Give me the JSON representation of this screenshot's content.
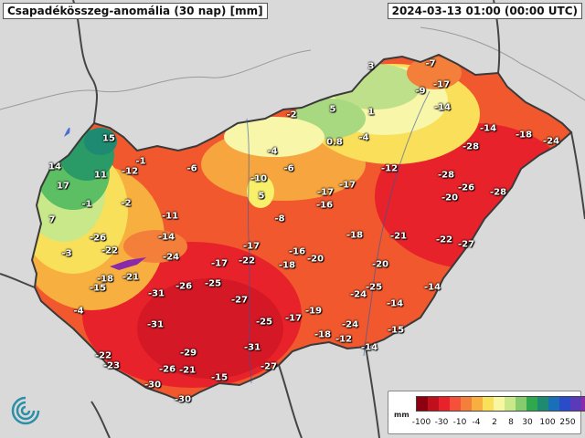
{
  "header": {
    "title": "Csapadékösszeg-anomália (30 nap) [mm]",
    "datetime": "2024-03-13 01:00 (00:00 UTC)"
  },
  "legend": {
    "unit": "mm",
    "colors": [
      "#8c0010",
      "#c0101e",
      "#e8222a",
      "#f5503a",
      "#f47f3a",
      "#f7b040",
      "#f8e05a",
      "#f8f6a0",
      "#c8e88a",
      "#86cc6e",
      "#2fa84e",
      "#1f8a72",
      "#1a70b8",
      "#2a4cc8",
      "#5a3ab8",
      "#8a2aa8"
    ],
    "ticks": [
      "-100",
      "-30",
      "-10",
      "-4",
      "2",
      "8",
      "30",
      "100",
      "250"
    ]
  },
  "stations": [
    {
      "value": "3",
      "col": "#fff"
    },
    {
      "value": "-7"
    },
    {
      "value": "-9"
    },
    {
      "value": "-17"
    },
    {
      "value": "-14"
    },
    {
      "value": "5"
    },
    {
      "value": "1"
    },
    {
      "value": "-2"
    },
    {
      "value": "0.8"
    },
    {
      "value": "-4"
    },
    {
      "value": "-14"
    },
    {
      "value": "-18"
    },
    {
      "value": "-24"
    },
    {
      "value": "-28"
    },
    {
      "value": "-28"
    },
    {
      "value": "-26"
    },
    {
      "value": "-20"
    },
    {
      "value": "-28"
    },
    {
      "value": "-12"
    },
    {
      "value": "-17"
    },
    {
      "value": "-17"
    },
    {
      "value": "-16"
    },
    {
      "value": "-4"
    },
    {
      "value": "-6"
    },
    {
      "value": "-10"
    },
    {
      "value": "5"
    },
    {
      "value": "-8"
    },
    {
      "value": "-6"
    },
    {
      "value": "15"
    },
    {
      "value": "-1"
    },
    {
      "value": "-12"
    },
    {
      "value": "14"
    },
    {
      "value": "11"
    },
    {
      "value": "17"
    },
    {
      "value": "-1"
    },
    {
      "value": "-2"
    },
    {
      "value": "7"
    },
    {
      "value": "-11"
    },
    {
      "value": "-26"
    },
    {
      "value": "-14"
    },
    {
      "value": "-22"
    },
    {
      "value": "-3"
    },
    {
      "value": "-24"
    },
    {
      "value": "-18"
    },
    {
      "value": "-21"
    },
    {
      "value": "-15"
    },
    {
      "value": "-17"
    },
    {
      "value": "-22"
    },
    {
      "value": "-17"
    },
    {
      "value": "-16"
    },
    {
      "value": "-18"
    },
    {
      "value": "-20"
    },
    {
      "value": "-18"
    },
    {
      "value": "-21"
    },
    {
      "value": "-22"
    },
    {
      "value": "-27"
    },
    {
      "value": "-20"
    },
    {
      "value": "-25"
    },
    {
      "value": "-24"
    },
    {
      "value": "-14"
    },
    {
      "value": "-14"
    },
    {
      "value": "-4"
    },
    {
      "value": "-26"
    },
    {
      "value": "-25"
    },
    {
      "value": "-31"
    },
    {
      "value": "-27"
    },
    {
      "value": "-19"
    },
    {
      "value": "-17"
    },
    {
      "value": "-31"
    },
    {
      "value": "-25"
    },
    {
      "value": "-24"
    },
    {
      "value": "-18"
    },
    {
      "value": "-12"
    },
    {
      "value": "-15"
    },
    {
      "value": "-14"
    },
    {
      "value": "-22"
    },
    {
      "value": "-29"
    },
    {
      "value": "-31"
    },
    {
      "value": "-23"
    },
    {
      "value": "-26"
    },
    {
      "value": "-21"
    },
    {
      "value": "-27"
    },
    {
      "value": "-15"
    },
    {
      "value": "-30"
    },
    {
      "value": "-30"
    }
  ]
}
